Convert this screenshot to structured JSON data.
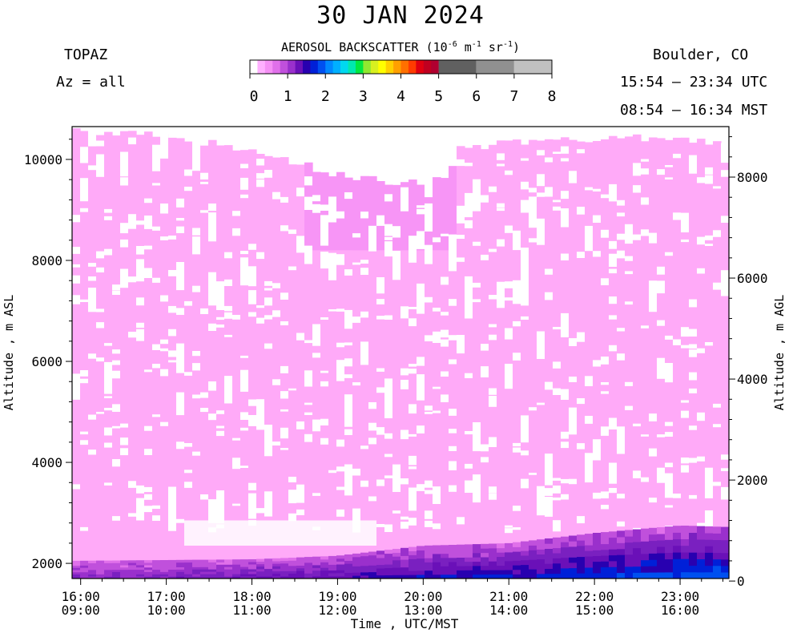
{
  "header": {
    "title": "30 JAN 2024",
    "instrument": "TOPAZ",
    "azimuth": "Az = all",
    "location": "Boulder, CO",
    "utc_range": "15:54 – 23:34 UTC",
    "mst_range": "08:54 – 16:34 MST"
  },
  "colorbar": {
    "title_main": "AEROSOL BACKSCATTER (10",
    "title_exp1": "-6",
    "title_mid1": " m",
    "title_exp2": "-1",
    "title_mid2": " sr",
    "title_exp3": "-1",
    "title_end": ")",
    "tick_labels": [
      "0",
      "1",
      "2",
      "3",
      "4",
      "5",
      "6",
      "7",
      "8"
    ],
    "colors": [
      "#ffffff",
      "#ffb0ff",
      "#f590f5",
      "#e070ea",
      "#c050dc",
      "#9a30cc",
      "#6a10b8",
      "#2800b0",
      "#0020d8",
      "#0050f0",
      "#0088ff",
      "#00b0ff",
      "#00d8f0",
      "#00e8b0",
      "#00e840",
      "#90e830",
      "#d8f020",
      "#ffff00",
      "#ffd000",
      "#ffa000",
      "#ff7000",
      "#ff3c00",
      "#e00010",
      "#c00020",
      "#b00030",
      "#606060",
      "#909090",
      "#c0c0c0"
    ]
  },
  "axes": {
    "left_label": "Altitude , m ASL",
    "right_label": "Altitude , m AGL",
    "x_label": "Time , UTC/MST"
  },
  "chart_data": {
    "type": "heatmap",
    "title": "30 JAN 2024",
    "xlabel": "Time , UTC/MST",
    "ylabel": "Altitude , m ASL",
    "ylabel_right": "Altitude , m AGL",
    "x_range_utc_hours": [
      15.9,
      23.57
    ],
    "ylim_asl": [
      1700,
      10650
    ],
    "yticks_asl": [
      2000,
      4000,
      6000,
      8000,
      10000
    ],
    "yticks_agl": [
      0,
      2000,
      4000,
      6000,
      8000
    ],
    "agl_offset_m": 1650,
    "xticks": [
      {
        "utc": "16:00",
        "mst": "09:00",
        "hour": 16
      },
      {
        "utc": "17:00",
        "mst": "10:00",
        "hour": 17
      },
      {
        "utc": "18:00",
        "mst": "11:00",
        "hour": 18
      },
      {
        "utc": "19:00",
        "mst": "12:00",
        "hour": 19
      },
      {
        "utc": "20:00",
        "mst": "13:00",
        "hour": 20
      },
      {
        "utc": "21:00",
        "mst": "14:00",
        "hour": 21
      },
      {
        "utc": "22:00",
        "mst": "15:00",
        "hour": 22
      },
      {
        "utc": "23:00",
        "mst": "16:00",
        "hour": 23
      }
    ],
    "colorbar_range": [
      0,
      8
    ],
    "colorbar_units": "10^-6 m^-1 sr^-1",
    "top_of_data_profile_m_asl": [
      {
        "hour": 15.9,
        "top": 10600
      },
      {
        "hour": 17.0,
        "top": 10450
      },
      {
        "hour": 17.8,
        "top": 10250
      },
      {
        "hour": 18.5,
        "top": 9950
      },
      {
        "hour": 19.0,
        "top": 9700
      },
      {
        "hour": 19.7,
        "top": 9550
      },
      {
        "hour": 20.3,
        "top": 9600
      },
      {
        "hour": 20.4,
        "top": 10200
      },
      {
        "hour": 21.0,
        "top": 10350
      },
      {
        "hour": 22.0,
        "top": 10400
      },
      {
        "hour": 23.0,
        "top": 10450
      },
      {
        "hour": 23.57,
        "top": 10250
      }
    ],
    "boundary_layer_top_m_asl": [
      {
        "hour": 15.9,
        "top": 2050
      },
      {
        "hour": 18.0,
        "top": 2080
      },
      {
        "hour": 19.0,
        "top": 2150
      },
      {
        "hour": 20.0,
        "top": 2350
      },
      {
        "hour": 21.0,
        "top": 2400
      },
      {
        "hour": 22.0,
        "top": 2600
      },
      {
        "hour": 23.0,
        "top": 2750
      },
      {
        "hour": 23.57,
        "top": 2720
      }
    ]
  }
}
